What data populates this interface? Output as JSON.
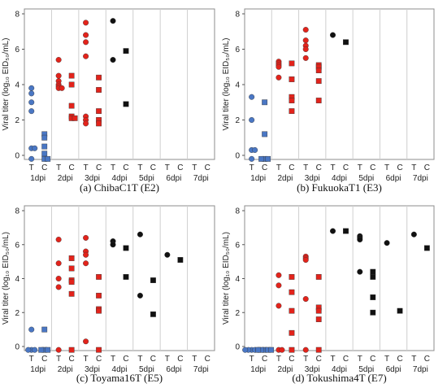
{
  "chart_data": [
    {
      "type": "scatter",
      "caption": "(a) ChibaC1T (E2)",
      "ylabel": "Viral titer (log₁₀ EID₅₀/mL)",
      "yticks": [
        "0",
        "2",
        "4",
        "6",
        "8"
      ],
      "ylim": [
        -0.3,
        8.5
      ],
      "groups": [
        "1dpi",
        "2dpi",
        "3dpi",
        "4dpi",
        "5dpi",
        "6dpi",
        "7dpi"
      ],
      "sublabels": [
        "T",
        "C"
      ],
      "points": [
        {
          "day": "1dpi",
          "sub": "T",
          "y": 3.8
        },
        {
          "day": "1dpi",
          "sub": "T",
          "y": 3.5
        },
        {
          "day": "1dpi",
          "sub": "T",
          "y": 3.0
        },
        {
          "day": "1dpi",
          "sub": "T",
          "y": 2.5
        },
        {
          "day": "1dpi",
          "sub": "T",
          "y": 0.4
        },
        {
          "day": "1dpi",
          "sub": "T",
          "y": 0.4
        },
        {
          "day": "1dpi",
          "sub": "T",
          "y": -0.2
        },
        {
          "day": "1dpi",
          "sub": "C",
          "y": 1.2
        },
        {
          "day": "1dpi",
          "sub": "C",
          "y": 1.0
        },
        {
          "day": "1dpi",
          "sub": "C",
          "y": 0.5
        },
        {
          "day": "1dpi",
          "sub": "C",
          "y": 0.1
        },
        {
          "day": "1dpi",
          "sub": "C",
          "y": -0.2
        },
        {
          "day": "1dpi",
          "sub": "C",
          "y": -0.2
        },
        {
          "day": "2dpi",
          "sub": "T",
          "y": 5.4
        },
        {
          "day": "2dpi",
          "sub": "T",
          "y": 4.5
        },
        {
          "day": "2dpi",
          "sub": "T",
          "y": 4.2
        },
        {
          "day": "2dpi",
          "sub": "T",
          "y": 4.0
        },
        {
          "day": "2dpi",
          "sub": "T",
          "y": 3.9
        },
        {
          "day": "2dpi",
          "sub": "T",
          "y": 3.8
        },
        {
          "day": "2dpi",
          "sub": "T",
          "y": 3.8
        },
        {
          "day": "2dpi",
          "sub": "C",
          "y": 4.5
        },
        {
          "day": "2dpi",
          "sub": "C",
          "y": 4.0
        },
        {
          "day": "2dpi",
          "sub": "C",
          "y": 2.8
        },
        {
          "day": "2dpi",
          "sub": "C",
          "y": 2.2
        },
        {
          "day": "2dpi",
          "sub": "C",
          "y": 2.1
        },
        {
          "day": "2dpi",
          "sub": "C",
          "y": 2.1
        },
        {
          "day": "3dpi",
          "sub": "T",
          "y": 7.5
        },
        {
          "day": "3dpi",
          "sub": "T",
          "y": 6.8
        },
        {
          "day": "3dpi",
          "sub": "T",
          "y": 6.4
        },
        {
          "day": "3dpi",
          "sub": "T",
          "y": 5.6
        },
        {
          "day": "3dpi",
          "sub": "T",
          "y": 2.2
        },
        {
          "day": "3dpi",
          "sub": "T",
          "y": 2.0
        },
        {
          "day": "3dpi",
          "sub": "T",
          "y": 1.8
        },
        {
          "day": "3dpi",
          "sub": "C",
          "y": 4.4
        },
        {
          "day": "3dpi",
          "sub": "C",
          "y": 3.7
        },
        {
          "day": "3dpi",
          "sub": "C",
          "y": 2.5
        },
        {
          "day": "3dpi",
          "sub": "C",
          "y": 2.0
        },
        {
          "day": "3dpi",
          "sub": "C",
          "y": 1.8
        },
        {
          "day": "4dpi",
          "sub": "T",
          "y": 7.6
        },
        {
          "day": "4dpi",
          "sub": "T",
          "y": 5.4
        },
        {
          "day": "4dpi",
          "sub": "C",
          "y": 5.9
        },
        {
          "day": "4dpi",
          "sub": "C",
          "y": 2.9
        }
      ]
    },
    {
      "type": "scatter",
      "caption": "(b) FukuokaT1 (E3)",
      "ylabel": "Viral titer (log₁₀ EID₅₀/mL)",
      "yticks": [
        "0",
        "2",
        "4",
        "6",
        "8"
      ],
      "ylim": [
        -0.3,
        8.5
      ],
      "groups": [
        "1dpi",
        "2dpi",
        "3dpi",
        "4dpi",
        "5dpi",
        "6dpi",
        "7dpi"
      ],
      "sublabels": [
        "T",
        "C"
      ],
      "points": [
        {
          "day": "1dpi",
          "sub": "T",
          "y": 3.3
        },
        {
          "day": "1dpi",
          "sub": "T",
          "y": 2.0
        },
        {
          "day": "1dpi",
          "sub": "T",
          "y": 0.3
        },
        {
          "day": "1dpi",
          "sub": "T",
          "y": 0.3
        },
        {
          "day": "1dpi",
          "sub": "T",
          "y": -0.2
        },
        {
          "day": "1dpi",
          "sub": "C",
          "y": 3.0
        },
        {
          "day": "1dpi",
          "sub": "C",
          "y": 1.2
        },
        {
          "day": "1dpi",
          "sub": "C",
          "y": -0.2
        },
        {
          "day": "1dpi",
          "sub": "C",
          "y": -0.2
        },
        {
          "day": "1dpi",
          "sub": "C",
          "y": -0.2
        },
        {
          "day": "2dpi",
          "sub": "T",
          "y": 5.3
        },
        {
          "day": "2dpi",
          "sub": "T",
          "y": 5.2
        },
        {
          "day": "2dpi",
          "sub": "T",
          "y": 5.1
        },
        {
          "day": "2dpi",
          "sub": "T",
          "y": 5.0
        },
        {
          "day": "2dpi",
          "sub": "T",
          "y": 4.4
        },
        {
          "day": "2dpi",
          "sub": "C",
          "y": 5.2
        },
        {
          "day": "2dpi",
          "sub": "C",
          "y": 4.3
        },
        {
          "day": "2dpi",
          "sub": "C",
          "y": 3.3
        },
        {
          "day": "2dpi",
          "sub": "C",
          "y": 3.1
        },
        {
          "day": "2dpi",
          "sub": "C",
          "y": 2.5
        },
        {
          "day": "3dpi",
          "sub": "T",
          "y": 7.1
        },
        {
          "day": "3dpi",
          "sub": "T",
          "y": 6.5
        },
        {
          "day": "3dpi",
          "sub": "T",
          "y": 6.2
        },
        {
          "day": "3dpi",
          "sub": "T",
          "y": 6.0
        },
        {
          "day": "3dpi",
          "sub": "T",
          "y": 5.5
        },
        {
          "day": "3dpi",
          "sub": "C",
          "y": 5.1
        },
        {
          "day": "3dpi",
          "sub": "C",
          "y": 5.0
        },
        {
          "day": "3dpi",
          "sub": "C",
          "y": 4.8
        },
        {
          "day": "3dpi",
          "sub": "C",
          "y": 4.2
        },
        {
          "day": "3dpi",
          "sub": "C",
          "y": 3.1
        },
        {
          "day": "4dpi",
          "sub": "T",
          "y": 6.8
        },
        {
          "day": "4dpi",
          "sub": "C",
          "y": 6.4
        }
      ]
    },
    {
      "type": "scatter",
      "caption": "(c) Toyama16T (E5)",
      "ylabel": "Viral titer (log₁₀ EID₅₀/mL)",
      "yticks": [
        "0",
        "2",
        "4",
        "6",
        "8"
      ],
      "ylim": [
        -0.3,
        8.5
      ],
      "groups": [
        "1dpi",
        "2dpi",
        "3dpi",
        "4dpi",
        "5dpi",
        "6dpi",
        "7dpi"
      ],
      "sublabels": [
        "T",
        "C"
      ],
      "points": [
        {
          "day": "1dpi",
          "sub": "T",
          "y": 1.0
        },
        {
          "day": "1dpi",
          "sub": "T",
          "y": -0.2
        },
        {
          "day": "1dpi",
          "sub": "T",
          "y": -0.2
        },
        {
          "day": "1dpi",
          "sub": "T",
          "y": -0.2
        },
        {
          "day": "1dpi",
          "sub": "C",
          "y": 1.0
        },
        {
          "day": "1dpi",
          "sub": "C",
          "y": -0.2
        },
        {
          "day": "1dpi",
          "sub": "C",
          "y": -0.2
        },
        {
          "day": "1dpi",
          "sub": "C",
          "y": -0.2
        },
        {
          "day": "2dpi",
          "sub": "T",
          "y": 6.3
        },
        {
          "day": "2dpi",
          "sub": "T",
          "y": 4.9
        },
        {
          "day": "2dpi",
          "sub": "T",
          "y": 4.0
        },
        {
          "day": "2dpi",
          "sub": "T",
          "y": 3.5
        },
        {
          "day": "2dpi",
          "sub": "T",
          "y": -0.2
        },
        {
          "day": "2dpi",
          "sub": "C",
          "y": 5.2
        },
        {
          "day": "2dpi",
          "sub": "C",
          "y": 4.6
        },
        {
          "day": "2dpi",
          "sub": "C",
          "y": 3.9
        },
        {
          "day": "2dpi",
          "sub": "C",
          "y": 3.8
        },
        {
          "day": "2dpi",
          "sub": "C",
          "y": 3.1
        },
        {
          "day": "2dpi",
          "sub": "C",
          "y": -0.2
        },
        {
          "day": "3dpi",
          "sub": "T",
          "y": 6.4
        },
        {
          "day": "3dpi",
          "sub": "T",
          "y": 5.6
        },
        {
          "day": "3dpi",
          "sub": "T",
          "y": 5.4
        },
        {
          "day": "3dpi",
          "sub": "T",
          "y": 4.9
        },
        {
          "day": "3dpi",
          "sub": "T",
          "y": 0.3
        },
        {
          "day": "3dpi",
          "sub": "C",
          "y": 4.1
        },
        {
          "day": "3dpi",
          "sub": "C",
          "y": 3.0
        },
        {
          "day": "3dpi",
          "sub": "C",
          "y": 2.2
        },
        {
          "day": "3dpi",
          "sub": "C",
          "y": 2.1
        },
        {
          "day": "3dpi",
          "sub": "C",
          "y": -0.2
        },
        {
          "day": "4dpi",
          "sub": "T",
          "y": 6.2
        },
        {
          "day": "4dpi",
          "sub": "T",
          "y": 6.0
        },
        {
          "day": "4dpi",
          "sub": "C",
          "y": 5.8
        },
        {
          "day": "4dpi",
          "sub": "C",
          "y": 4.1
        },
        {
          "day": "5dpi",
          "sub": "T",
          "y": 6.6
        },
        {
          "day": "5dpi",
          "sub": "T",
          "y": 3.0
        },
        {
          "day": "5dpi",
          "sub": "C",
          "y": 3.9
        },
        {
          "day": "5dpi",
          "sub": "C",
          "y": 1.9
        },
        {
          "day": "6dpi",
          "sub": "T",
          "y": 5.4
        },
        {
          "day": "6dpi",
          "sub": "C",
          "y": 5.1
        }
      ]
    },
    {
      "type": "scatter",
      "caption": "(d) Tokushima4T (E7)",
      "ylabel": "Viral titer (log₁₀ EID₅₀/mL)",
      "yticks": [
        "0",
        "2",
        "4",
        "6",
        "8"
      ],
      "ylim": [
        -0.3,
        8.5
      ],
      "groups": [
        "1dpi",
        "2dpi",
        "3dpi",
        "4dpi",
        "5dpi",
        "6dpi",
        "7dpi"
      ],
      "sublabels": [
        "T",
        "C"
      ],
      "points": [
        {
          "day": "1dpi",
          "sub": "T",
          "y": -0.2
        },
        {
          "day": "1dpi",
          "sub": "T",
          "y": -0.2
        },
        {
          "day": "1dpi",
          "sub": "T",
          "y": -0.2
        },
        {
          "day": "1dpi",
          "sub": "T",
          "y": -0.2
        },
        {
          "day": "1dpi",
          "sub": "T",
          "y": -0.2
        },
        {
          "day": "1dpi",
          "sub": "C",
          "y": -0.2
        },
        {
          "day": "1dpi",
          "sub": "C",
          "y": -0.2
        },
        {
          "day": "1dpi",
          "sub": "C",
          "y": -0.2
        },
        {
          "day": "1dpi",
          "sub": "C",
          "y": -0.2
        },
        {
          "day": "1dpi",
          "sub": "C",
          "y": -0.2
        },
        {
          "day": "2dpi",
          "sub": "T",
          "y": 4.2
        },
        {
          "day": "2dpi",
          "sub": "T",
          "y": 3.6
        },
        {
          "day": "2dpi",
          "sub": "T",
          "y": 2.4
        },
        {
          "day": "2dpi",
          "sub": "T",
          "y": -0.2
        },
        {
          "day": "2dpi",
          "sub": "T",
          "y": -0.2
        },
        {
          "day": "2dpi",
          "sub": "C",
          "y": 4.1
        },
        {
          "day": "2dpi",
          "sub": "C",
          "y": 3.2
        },
        {
          "day": "2dpi",
          "sub": "C",
          "y": 2.1
        },
        {
          "day": "2dpi",
          "sub": "C",
          "y": 0.8
        },
        {
          "day": "2dpi",
          "sub": "C",
          "y": -0.2
        },
        {
          "day": "3dpi",
          "sub": "T",
          "y": 5.3
        },
        {
          "day": "3dpi",
          "sub": "T",
          "y": 5.2
        },
        {
          "day": "3dpi",
          "sub": "T",
          "y": 5.1
        },
        {
          "day": "3dpi",
          "sub": "T",
          "y": 2.8
        },
        {
          "day": "3dpi",
          "sub": "T",
          "y": -0.2
        },
        {
          "day": "3dpi",
          "sub": "C",
          "y": 4.1
        },
        {
          "day": "3dpi",
          "sub": "C",
          "y": 2.3
        },
        {
          "day": "3dpi",
          "sub": "C",
          "y": 2.1
        },
        {
          "day": "3dpi",
          "sub": "C",
          "y": 1.6
        },
        {
          "day": "3dpi",
          "sub": "C",
          "y": -0.2
        },
        {
          "day": "4dpi",
          "sub": "T",
          "y": 6.8
        },
        {
          "day": "4dpi",
          "sub": "C",
          "y": 6.8
        },
        {
          "day": "5dpi",
          "sub": "T",
          "y": 6.5
        },
        {
          "day": "5dpi",
          "sub": "T",
          "y": 6.4
        },
        {
          "day": "5dpi",
          "sub": "T",
          "y": 6.3
        },
        {
          "day": "5dpi",
          "sub": "T",
          "y": 4.4
        },
        {
          "day": "5dpi",
          "sub": "C",
          "y": 4.4
        },
        {
          "day": "5dpi",
          "sub": "C",
          "y": 4.1
        },
        {
          "day": "5dpi",
          "sub": "C",
          "y": 2.9
        },
        {
          "day": "5dpi",
          "sub": "C",
          "y": 2.0
        },
        {
          "day": "6dpi",
          "sub": "T",
          "y": 6.1
        },
        {
          "day": "6dpi",
          "sub": "C",
          "y": 2.1
        },
        {
          "day": "7dpi",
          "sub": "T",
          "y": 6.6
        },
        {
          "day": "7dpi",
          "sub": "C",
          "y": 5.8
        }
      ]
    }
  ],
  "colors": {
    "1dpi": "#4a77c4",
    "2dpi": "#e3231b",
    "3dpi": "#e3231b",
    "late": "#111111",
    "border": "#8c8c8c",
    "separator": "#cfcfcf"
  }
}
